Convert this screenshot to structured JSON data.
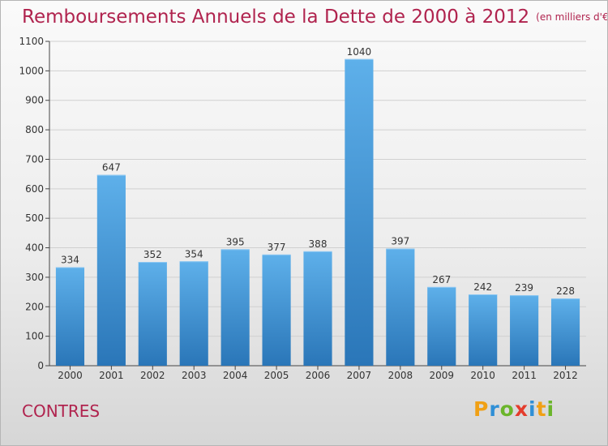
{
  "title": "Remboursements Annuels de la Dette de 2000 à 2012",
  "subtitle": "(en milliers d'€)",
  "commune": "CONTRES",
  "logo": {
    "letters": [
      "P",
      "r",
      "o",
      "x",
      "i",
      "t",
      "i"
    ],
    "colors": [
      "#f0a015",
      "#2f8fd6",
      "#6bb52b",
      "#e43c2c",
      "#2f8fd6",
      "#f0a015",
      "#6bb52b"
    ]
  },
  "colors": {
    "title": "#b0234e",
    "bar_top": "#5eb0ea",
    "bar_bottom": "#2a76b8",
    "grid": "#d0d0d0"
  },
  "chart_data": {
    "type": "bar",
    "categories": [
      "2000",
      "2001",
      "2002",
      "2003",
      "2004",
      "2005",
      "2006",
      "2007",
      "2008",
      "2009",
      "2010",
      "2011",
      "2012"
    ],
    "values": [
      334,
      647,
      352,
      354,
      395,
      377,
      388,
      1040,
      397,
      267,
      242,
      239,
      228
    ],
    "ylim": [
      0,
      1100
    ],
    "yticks": [
      0,
      100,
      200,
      300,
      400,
      500,
      600,
      700,
      800,
      900,
      1000,
      1100
    ],
    "grid": true,
    "data_labels": true
  }
}
